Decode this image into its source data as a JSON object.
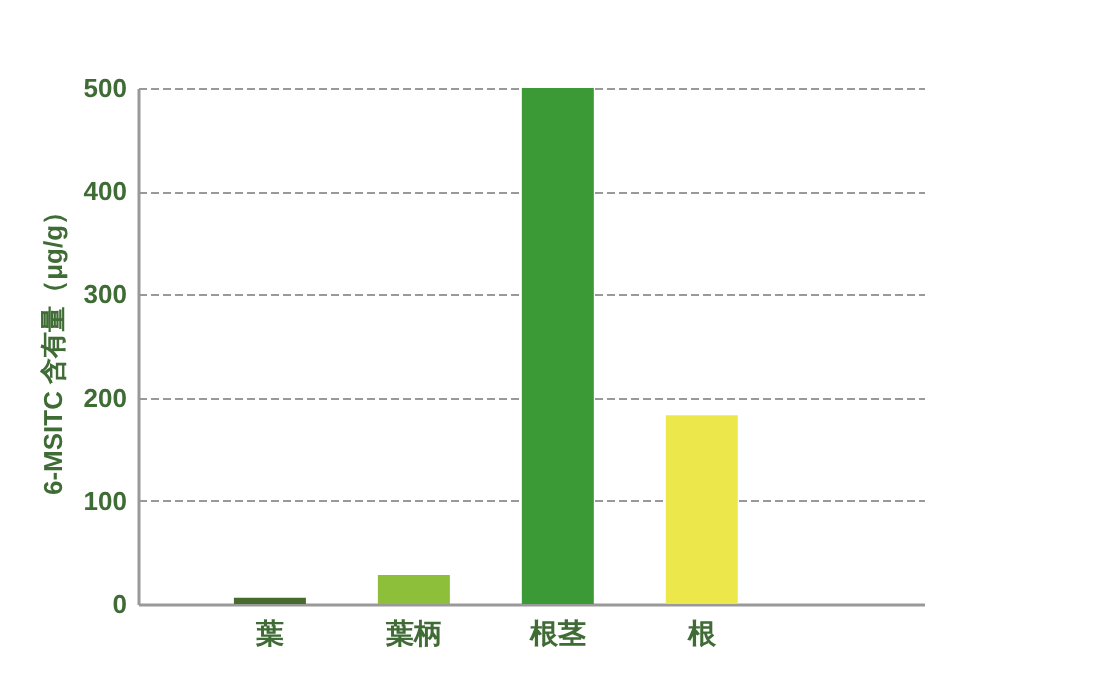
{
  "chart_data": {
    "type": "bar",
    "ylabel": "6-MSITC 含有量（μg/g）",
    "categories": [
      "葉",
      "葉柄",
      "根茎",
      "根"
    ],
    "values": [
      6,
      28,
      500,
      183
    ],
    "colors": [
      "#466b2c",
      "#8dbf3b",
      "#3b9a36",
      "#ece84c"
    ],
    "ylim": [
      0,
      500
    ],
    "yticks": [
      0,
      100,
      200,
      300,
      400,
      500
    ],
    "grid": "y"
  }
}
